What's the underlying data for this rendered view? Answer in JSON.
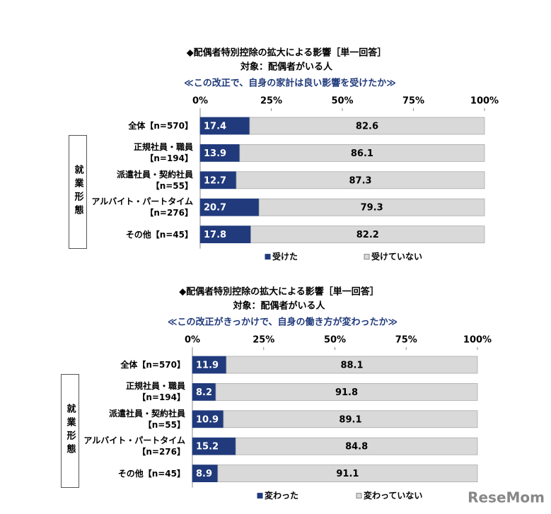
{
  "chart_data": [
    {
      "type": "bar",
      "orientation": "horizontal",
      "stacked": true,
      "title": "◆配偶者特別控除の拡大による影響［単一回答］",
      "subtitle": "対象：配偶者がいる人",
      "question": "≪この改正で、自身の家計は良い影響を受けたか≫",
      "categories": [
        "全体【n=570】",
        "正規社員・職員\n【n=194】",
        "派遣社員・契約社員\n【n=55】",
        "アルバイト・パートタイム\n【n=276】",
        "その他【n=45】"
      ],
      "group_label": "就業形態",
      "series": [
        {
          "name": "受けた",
          "color": "#203a7c",
          "values": [
            17.4,
            13.9,
            12.7,
            20.7,
            17.8
          ]
        },
        {
          "name": "受けていない",
          "color": "#d9d9d9",
          "values": [
            82.6,
            86.1,
            87.3,
            79.3,
            82.2
          ]
        }
      ],
      "xlim": [
        0,
        100
      ],
      "xticks": [
        {
          "value": 0,
          "label": "0%"
        },
        {
          "value": 25,
          "label": "25%"
        },
        {
          "value": 50,
          "label": "50%"
        },
        {
          "value": 75,
          "label": "75%"
        },
        {
          "value": 100,
          "label": "100%"
        }
      ],
      "legend": "bottom"
    },
    {
      "type": "bar",
      "orientation": "horizontal",
      "stacked": true,
      "title": "◆配偶者特別控除の拡大による影響［単一回答］",
      "subtitle": "対象：配偶者がいる人",
      "question": "≪この改正がきっかけで、自身の働き方が変わったか≫",
      "categories": [
        "全体【n=570】",
        "正規社員・職員\n【n=194】",
        "派遣社員・契約社員\n【n=55】",
        "アルバイト・パートタイム\n【n=276】",
        "その他【n=45】"
      ],
      "group_label": "就業形態",
      "series": [
        {
          "name": "変わった",
          "color": "#203a7c",
          "values": [
            11.9,
            8.2,
            10.9,
            15.2,
            8.9
          ]
        },
        {
          "name": "変わっていない",
          "color": "#d9d9d9",
          "values": [
            88.1,
            91.8,
            89.1,
            84.8,
            91.1
          ]
        }
      ],
      "xlim": [
        0,
        100
      ],
      "xticks": [
        {
          "value": 0,
          "label": "0%"
        },
        {
          "value": 25,
          "label": "25%"
        },
        {
          "value": 50,
          "label": "50%"
        },
        {
          "value": 75,
          "label": "75%"
        },
        {
          "value": 100,
          "label": "100%"
        }
      ],
      "legend": "bottom"
    }
  ],
  "watermark": "ReseMom"
}
